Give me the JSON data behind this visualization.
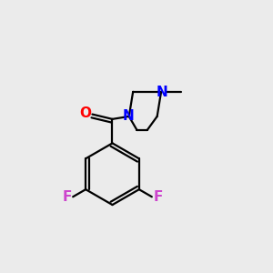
{
  "background_color": "#ebebeb",
  "bond_color": "#000000",
  "N_color": "#0000ff",
  "O_color": "#ff0000",
  "F_color": "#cc44cc",
  "figsize": [
    3.0,
    3.0
  ],
  "dpi": 100,
  "line_width": 1.6,
  "xlim": [
    0,
    10
  ],
  "ylim": [
    0,
    10
  ]
}
